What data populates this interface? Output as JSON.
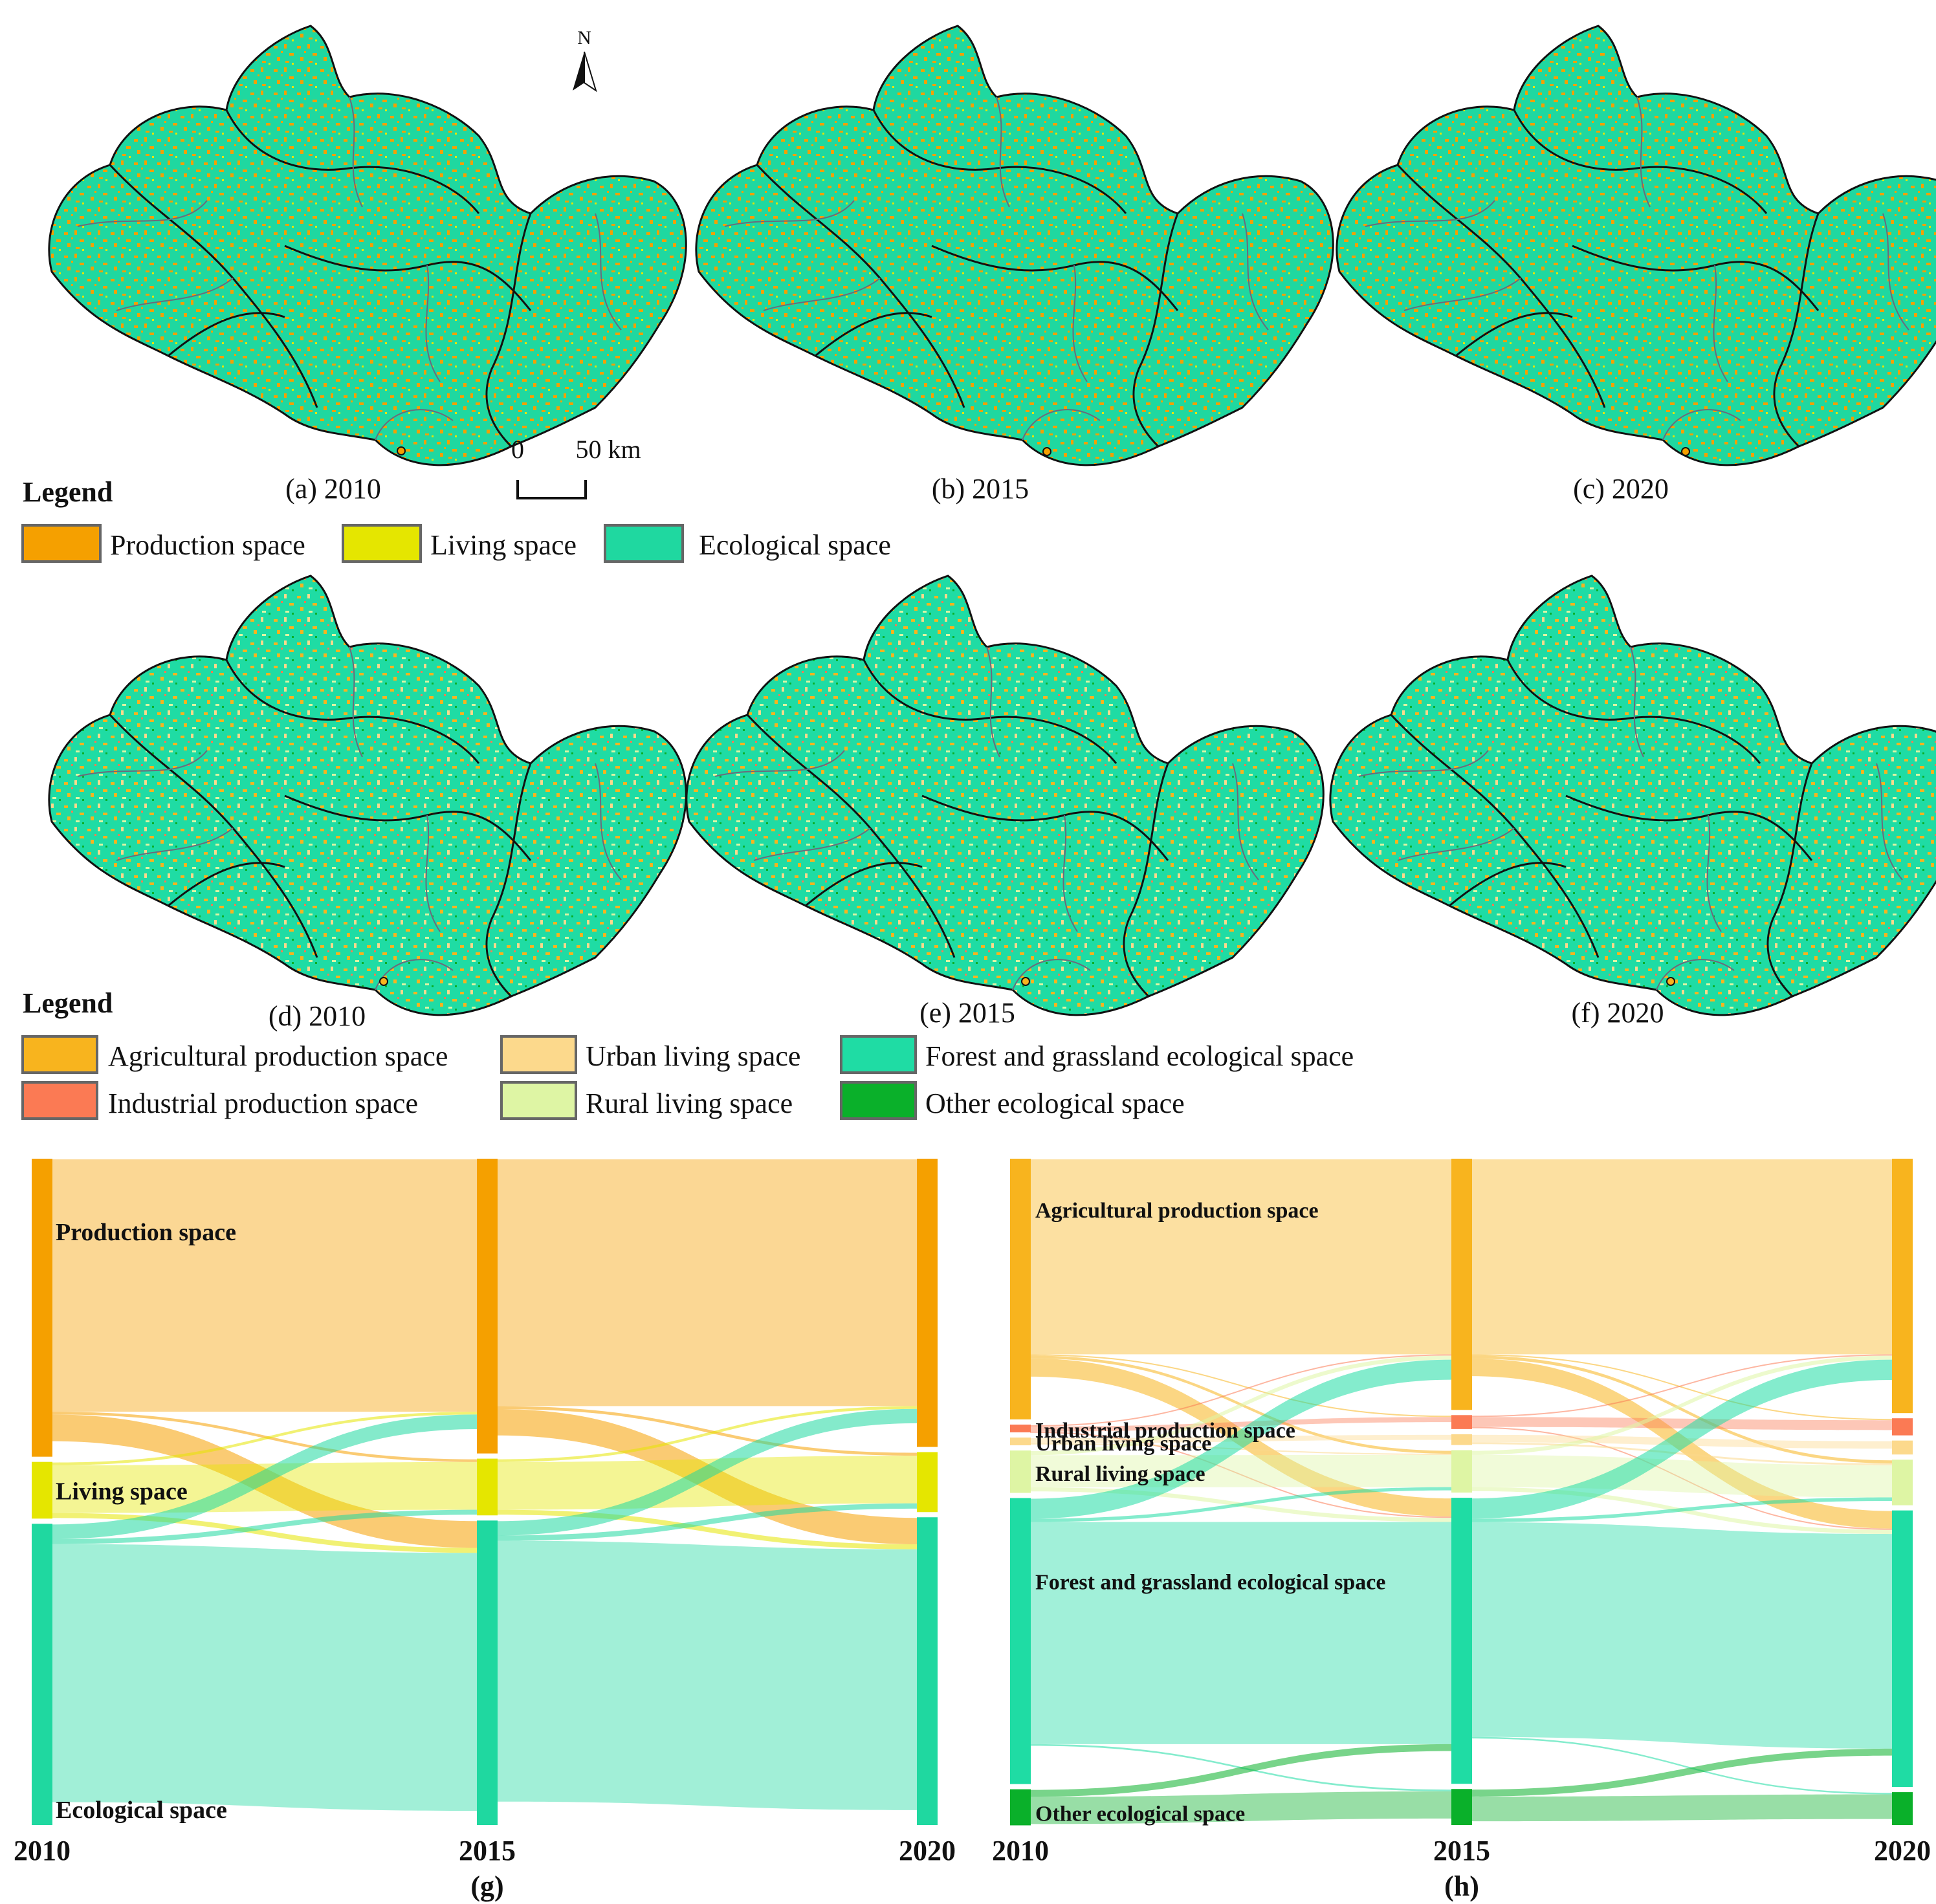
{
  "colors": {
    "production": "#f5a000",
    "living": "#e5e600",
    "ecological": "#1fd8a0",
    "agricultural": "#f8b41e",
    "industrial": "#fb7a54",
    "urban": "#fcd98c",
    "rural": "#def5a4",
    "forest": "#1fdca4",
    "other_eco": "#0ab02a",
    "boundary_county": "#111111",
    "boundary_town": "#6b6b7b"
  },
  "icons": {
    "north": "north-arrow-icon",
    "scale": "scale-bar-icon"
  },
  "north_label": "N",
  "scale_bar": {
    "zero": "0",
    "end": "50 km"
  },
  "maps_top": [
    {
      "caption": "(a) 2010"
    },
    {
      "caption": "(b) 2015"
    },
    {
      "caption": "(c) 2020"
    }
  ],
  "maps_bottom": [
    {
      "caption": "(d) 2010"
    },
    {
      "caption": "(e) 2015"
    },
    {
      "caption": "(f) 2020"
    }
  ],
  "legend1": {
    "title": "Legend",
    "items": [
      "Production space",
      "Living space",
      "Ecological space"
    ]
  },
  "legend2": {
    "title": "Legend",
    "items": [
      "Agricultural production space",
      "Urban living space",
      "Forest and grassland ecological space",
      "Industrial production space",
      "Rural living space",
      "Other ecological space"
    ]
  },
  "chart_data": [
    {
      "type": "sankey",
      "panel": "(g)",
      "stages": [
        "2010",
        "2015",
        "2020"
      ],
      "categories": [
        "Production space",
        "Living space",
        "Ecological space"
      ],
      "shares_percent": {
        "2010": [
          45.5,
          8.5,
          46.0
        ],
        "2015": [
          45.0,
          8.5,
          46.5
        ],
        "2020": [
          44.0,
          9.0,
          47.0
        ]
      }
    },
    {
      "type": "sankey",
      "panel": "(h)",
      "stages": [
        "2010",
        "2015",
        "2020"
      ],
      "categories": [
        "Agricultural production space",
        "Industrial production space",
        "Urban living space",
        "Rural living space",
        "Forest and grassland ecological space",
        "Other ecological space"
      ],
      "shares_percent": {
        "2010": [
          41.0,
          1.0,
          1.0,
          6.5,
          45.0,
          5.5
        ],
        "2015": [
          39.5,
          2.0,
          1.5,
          6.5,
          45.0,
          5.5
        ],
        "2020": [
          40.0,
          2.5,
          2.0,
          7.0,
          43.5,
          5.0
        ]
      }
    }
  ]
}
